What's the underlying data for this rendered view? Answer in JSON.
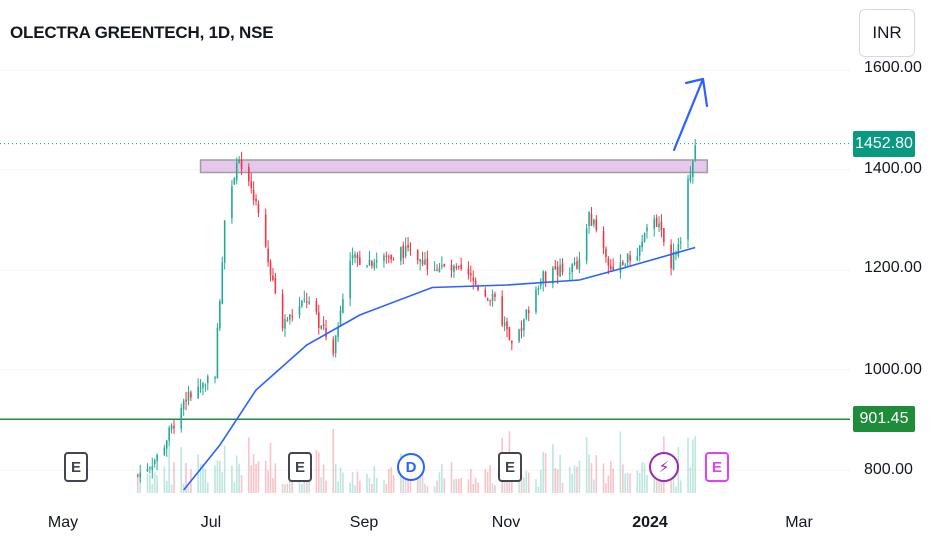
{
  "header": {
    "title": "OLECTRA GREENTECH, 1D, NSE",
    "currency": "INR"
  },
  "colors": {
    "up": "#22ab94",
    "down": "#f23645",
    "ma": "#2962ff",
    "support": "#1f8c3a",
    "zone": "#e1bee7",
    "zone_border": "#9e9e9e",
    "last_price": "#089981"
  },
  "price_tags": {
    "last": {
      "label": "1452.80",
      "value": 1452.8
    },
    "support": {
      "label": "901.45",
      "value": 901.45
    }
  },
  "events": [
    {
      "label": "E",
      "kind": "earnings",
      "icon": "earnings-icon"
    },
    {
      "label": "E",
      "kind": "earnings",
      "icon": "earnings-icon"
    },
    {
      "label": "D",
      "kind": "dividend",
      "icon": "dividend-icon"
    },
    {
      "label": "E",
      "kind": "earnings",
      "icon": "earnings-icon"
    },
    {
      "label": "⚡",
      "kind": "split",
      "icon": "lightning-icon"
    },
    {
      "label": "E",
      "kind": "earnings-upcoming",
      "icon": "earnings-icon"
    }
  ],
  "chart_data": {
    "type": "candlestick",
    "title": "OLECTRA GREENTECH, 1D, NSE",
    "y_axis": {
      "ticks": [
        "1600.00",
        "1400.00",
        "1200.00",
        "1000.00",
        "800.00"
      ],
      "ylim": [
        760,
        1620
      ]
    },
    "x_axis": {
      "ticks": [
        "May",
        "Jul",
        "Sep",
        "Nov",
        "2024",
        "Mar"
      ]
    },
    "resistance_zone": {
      "low": 1395,
      "high": 1420
    },
    "support_line": 901.45,
    "last_price": 1452.8,
    "series": [
      {
        "name": "Price",
        "type": "candlestick",
        "points": [
          {
            "x": "2023-06-01",
            "y": 790
          },
          {
            "x": "2023-06-10",
            "y": 830
          },
          {
            "x": "2023-06-20",
            "y": 940
          },
          {
            "x": "2023-06-26",
            "y": 960
          },
          {
            "x": "2023-07-03",
            "y": 1000
          },
          {
            "x": "2023-07-07",
            "y": 1300
          },
          {
            "x": "2023-07-12",
            "y": 1420
          },
          {
            "x": "2023-07-20",
            "y": 1330
          },
          {
            "x": "2023-07-31",
            "y": 1090
          },
          {
            "x": "2023-08-10",
            "y": 1140
          },
          {
            "x": "2023-08-21",
            "y": 1040
          },
          {
            "x": "2023-08-28",
            "y": 1220
          },
          {
            "x": "2023-09-10",
            "y": 1220
          },
          {
            "x": "2023-09-18",
            "y": 1240
          },
          {
            "x": "2023-10-01",
            "y": 1210
          },
          {
            "x": "2023-10-15",
            "y": 1190
          },
          {
            "x": "2023-10-28",
            "y": 1130
          },
          {
            "x": "2023-11-03",
            "y": 1040
          },
          {
            "x": "2023-11-15",
            "y": 1185
          },
          {
            "x": "2023-12-01",
            "y": 1210
          },
          {
            "x": "2023-12-05",
            "y": 1310
          },
          {
            "x": "2023-12-15",
            "y": 1200
          },
          {
            "x": "2023-12-26",
            "y": 1240
          },
          {
            "x": "2024-01-01",
            "y": 1310
          },
          {
            "x": "2024-01-08",
            "y": 1215
          },
          {
            "x": "2024-01-12",
            "y": 1250
          },
          {
            "x": "2024-01-15",
            "y": 1380
          },
          {
            "x": "2024-01-18",
            "y": 1452.8
          }
        ]
      },
      {
        "name": "Moving average",
        "type": "line",
        "points": [
          {
            "x": "2023-06-20",
            "y": 760
          },
          {
            "x": "2023-07-05",
            "y": 850
          },
          {
            "x": "2023-07-20",
            "y": 960
          },
          {
            "x": "2023-08-10",
            "y": 1050
          },
          {
            "x": "2023-09-01",
            "y": 1110
          },
          {
            "x": "2023-10-01",
            "y": 1165
          },
          {
            "x": "2023-11-01",
            "y": 1170
          },
          {
            "x": "2023-12-01",
            "y": 1180
          },
          {
            "x": "2023-12-20",
            "y": 1205
          },
          {
            "x": "2024-01-18",
            "y": 1245
          }
        ]
      }
    ],
    "annotation_arrow": "up"
  }
}
